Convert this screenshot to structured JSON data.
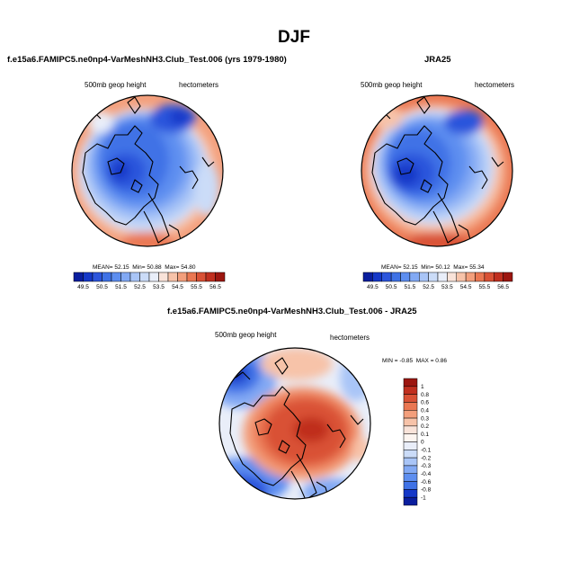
{
  "title": "DJF",
  "panels": {
    "left": {
      "title": "f.e15a6.FAMIPC5.ne0np4-VarMeshNH3.Club_Test.006 (yrs 1979-1980)",
      "variable": "500mb geop height",
      "units": "hectometers",
      "stats": {
        "mean_label": "MEAN=",
        "mean": "52.15",
        "min_label": "Min=",
        "min": "50.88",
        "max_label": "Max=",
        "max": "54.80"
      }
    },
    "right": {
      "title": "JRA25",
      "variable": "500mb geop height",
      "units": "hectometers",
      "stats": {
        "mean_label": "MEAN=",
        "mean": "52.15",
        "min_label": "Min=",
        "min": "50.12",
        "max_label": "Max=",
        "max": "55.34"
      }
    },
    "diff": {
      "title": "f.e15a6.FAMIPC5.ne0np4-VarMeshNH3.Club_Test.006 - JRA25",
      "variable": "500mb geop height",
      "units": "hectometers",
      "stats": {
        "min_label": "MIN =",
        "min": "-0.85",
        "max_label": "MAX =",
        "max": "0.86"
      }
    }
  },
  "colorbar_abs": {
    "labels": [
      "49.5",
      "50.5",
      "51.5",
      "52.5",
      "53.5",
      "54.5",
      "55.5",
      "56.5"
    ],
    "colors": [
      "#0a1e9e",
      "#1538c8",
      "#2c55dc",
      "#3f72e6",
      "#5d8ef0",
      "#82a9f4",
      "#a9c5f7",
      "#cbdcf8",
      "#e9eef9",
      "#f9e3d9",
      "#f7c3a9",
      "#f39f7c",
      "#ea7752",
      "#d95135",
      "#c02f1f",
      "#9c1610"
    ]
  },
  "colorbar_diff": {
    "labels": [
      "1",
      "0.8",
      "0.6",
      "0.4",
      "0.3",
      "0.2",
      "0.1",
      "0",
      "-0.1",
      "-0.2",
      "-0.3",
      "-0.4",
      "-0.6",
      "-0.8",
      "-1"
    ],
    "colors": [
      "#9c1610",
      "#c02f1f",
      "#d95135",
      "#ea7752",
      "#f39f7c",
      "#f7c3a9",
      "#f9e3d9",
      "#fdf5f0",
      "#e9eef9",
      "#cbdcf8",
      "#a9c5f7",
      "#82a9f4",
      "#5d8ef0",
      "#3f72e6",
      "#1538c8",
      "#0a1e9e"
    ]
  }
}
